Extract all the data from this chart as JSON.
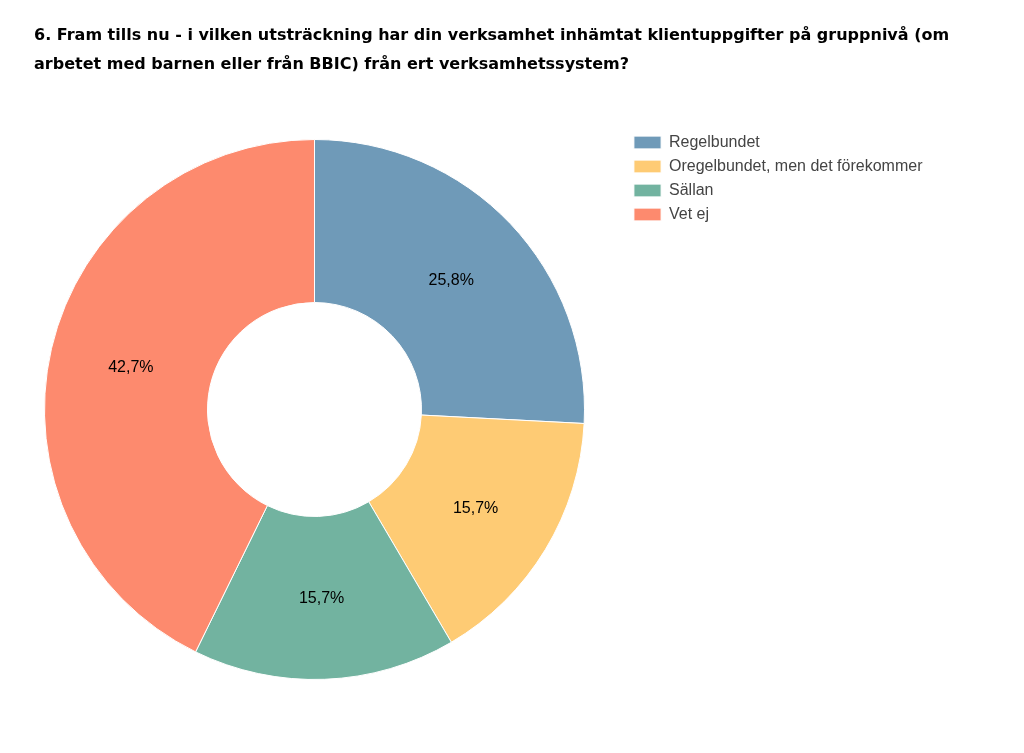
{
  "chart_data": {
    "type": "donut",
    "title": "6. Fram tills nu - i vilken utsträckning har din verksamhet inhämtat klientuppgifter på gruppnivå (om arbetet med barnen eller från BBIC) från ert verksamhetssystem?",
    "categories": [
      "Regelbundet",
      "Oregelbundet, men det förekommer",
      "Sällan",
      "Vet ej"
    ],
    "values": [
      25.8,
      15.7,
      15.7,
      42.7
    ],
    "value_labels": [
      "25,8%",
      "15,7%",
      "15,7%",
      "42,7%"
    ],
    "colors": [
      "#6f9ab8",
      "#fecb74",
      "#72b3a0",
      "#fd8a6e"
    ],
    "legend": "top right"
  }
}
